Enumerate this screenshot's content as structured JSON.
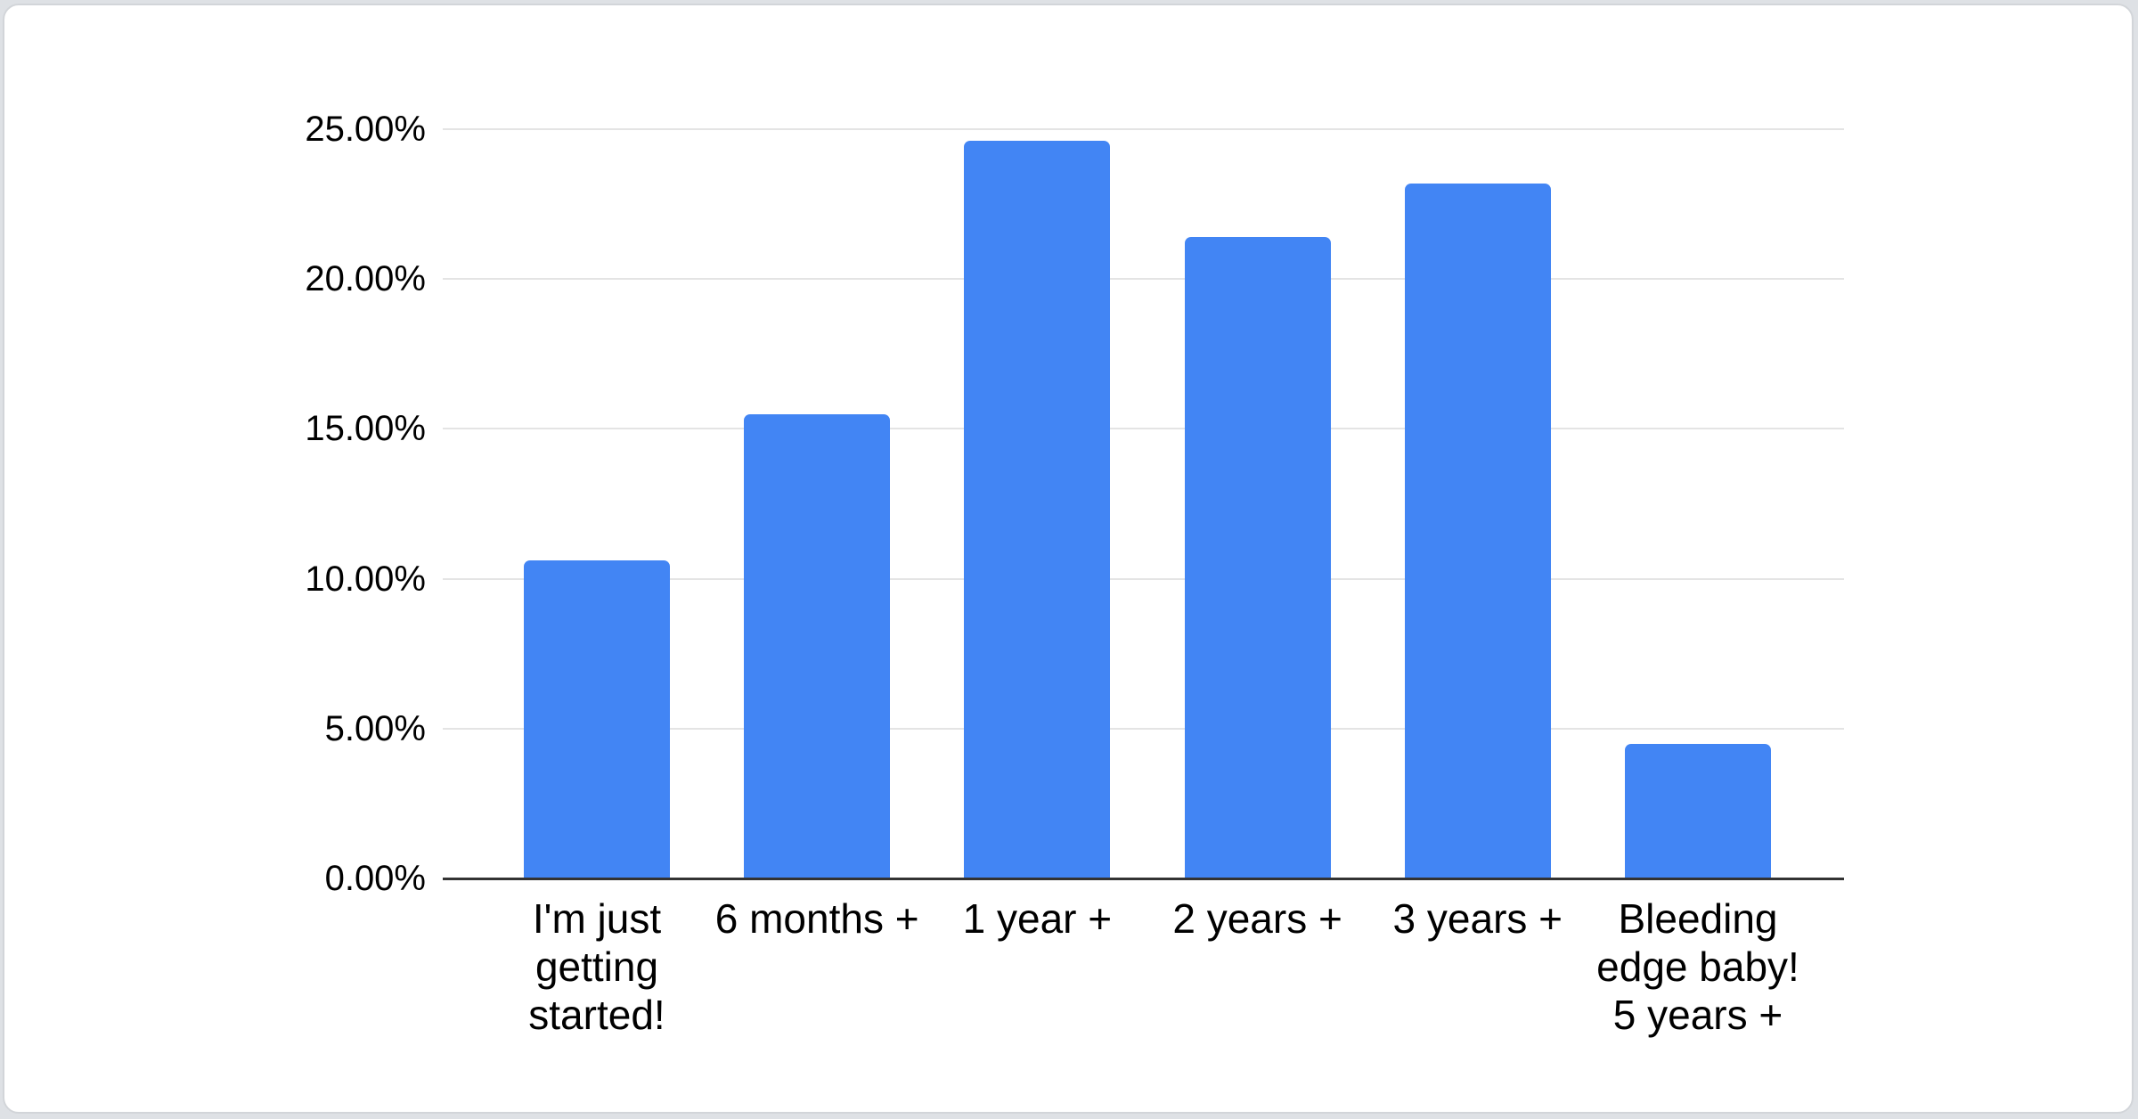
{
  "page": {
    "background_color": "#dee1e5",
    "card_background": "#ffffff",
    "card_border_color": "#d2d5d9"
  },
  "chart_data": {
    "type": "bar",
    "title": "",
    "xlabel": "",
    "ylabel": "",
    "categories": [
      "I'm just\ngetting\nstarted!",
      "6 months +",
      "1 year +",
      "2 years +",
      "3 years +",
      "Bleeding\nedge baby!\n5 years +"
    ],
    "values": [
      10.6,
      15.5,
      24.6,
      21.4,
      23.2,
      4.5
    ],
    "value_unit": "percent",
    "ylim": [
      0,
      25
    ],
    "yticks": [
      "0.00%",
      "5.00%",
      "10.00%",
      "15.00%",
      "20.00%",
      "25.00%"
    ],
    "ytick_values": [
      0,
      5,
      10,
      15,
      20,
      25
    ],
    "grid": true,
    "legend_position": "none",
    "bar_color": "#4285f4",
    "gridline_color": "#e4e4e4",
    "axis_line_color": "#333333",
    "text_color": "#000000"
  }
}
